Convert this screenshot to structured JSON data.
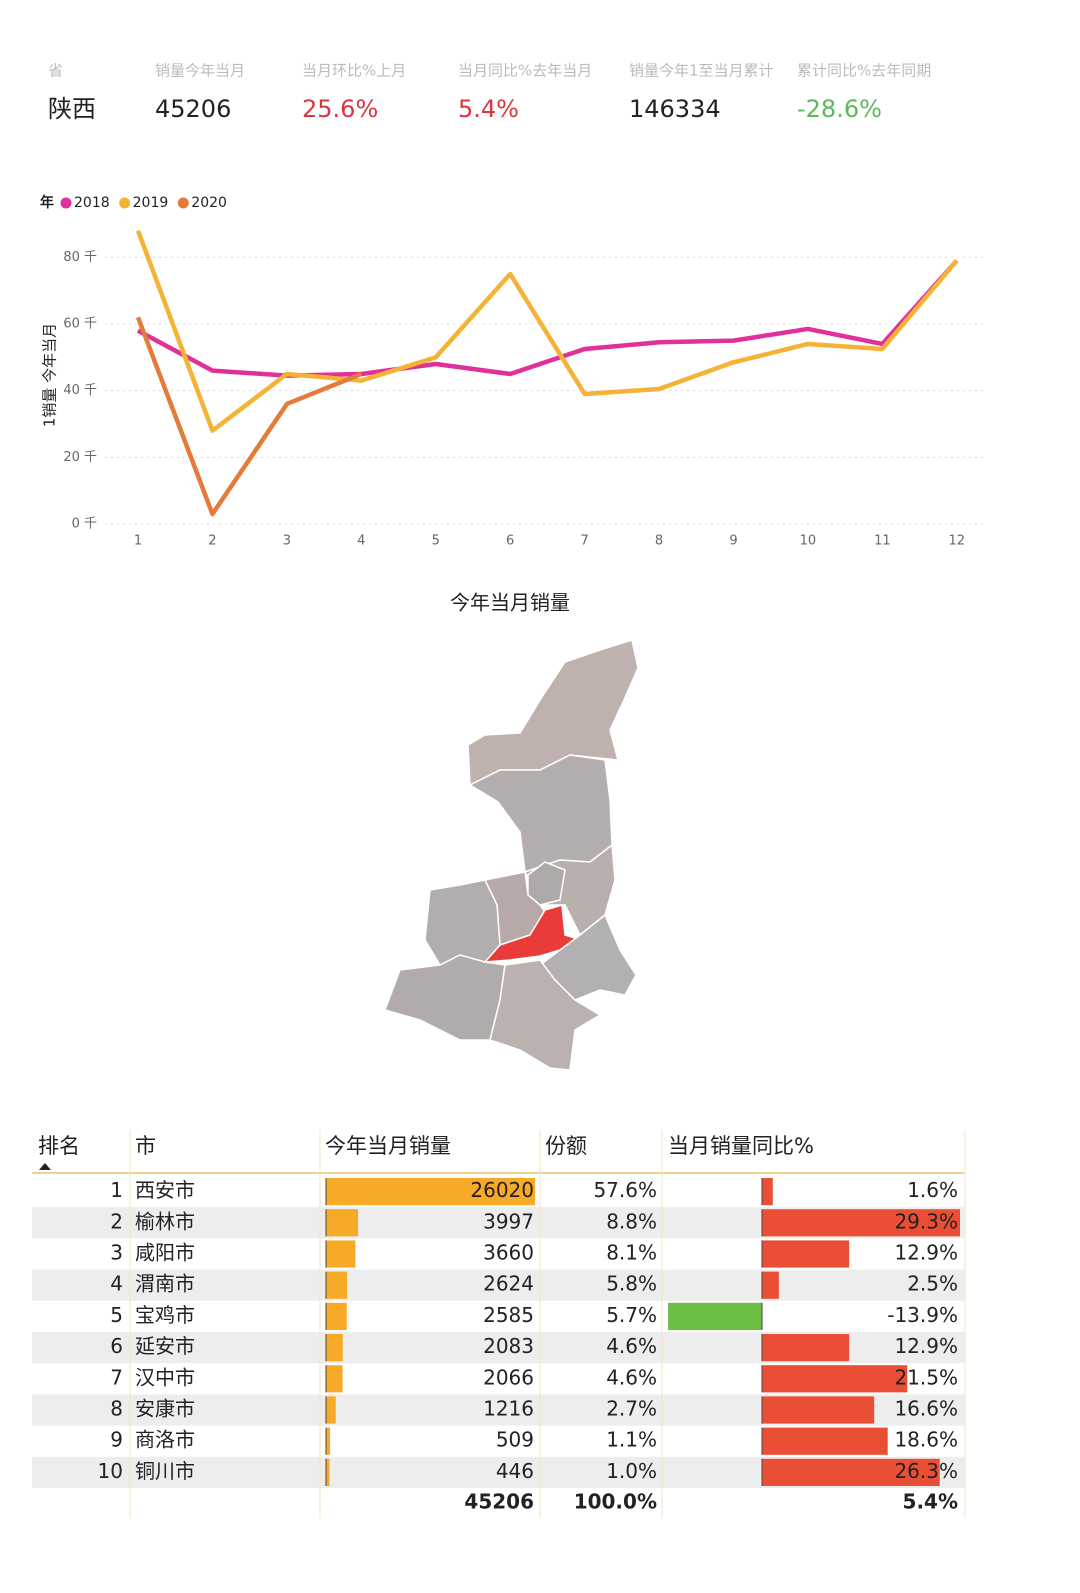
{
  "kpis": {
    "labels": [
      "省",
      "销量今年当月",
      "当月环比%上月",
      "当月同比%去年当月",
      "销量今年1至当月累计",
      "累计同比%去年同期"
    ],
    "values": [
      "陕西",
      "45206",
      "25.6%",
      "5.4%",
      "146334",
      "-28.6%"
    ],
    "colors": [
      "#222222",
      "#222222",
      "#d9363e",
      "#d9363e",
      "#222222",
      "#5cb85c"
    ]
  },
  "chart_data": {
    "type": "line",
    "legend_title": "年",
    "y_label": "1销量 今年当月",
    "categories": [
      "1",
      "2",
      "3",
      "4",
      "5",
      "6",
      "7",
      "8",
      "9",
      "10",
      "11",
      "12"
    ],
    "series": [
      {
        "name": "2018",
        "color": "#e0309a",
        "values": [
          58000,
          46000,
          44500,
          45000,
          48000,
          45000,
          52500,
          54500,
          55000,
          58500,
          54000,
          79000
        ]
      },
      {
        "name": "2019",
        "color": "#f5b335",
        "values": [
          88000,
          28000,
          45000,
          43000,
          50000,
          75000,
          39000,
          40500,
          48500,
          54000,
          52500,
          79000
        ]
      },
      {
        "name": "2020",
        "color": "#e57a3a",
        "values": [
          62000,
          3000,
          36000,
          45000,
          null,
          null,
          null,
          null,
          null,
          null,
          null,
          null
        ]
      }
    ],
    "ylim": [
      0,
      88000
    ],
    "yticks": [
      {
        "value": 0,
        "label": "0 千"
      },
      {
        "value": 20000,
        "label": "20 千"
      },
      {
        "value": 40000,
        "label": "40 千"
      },
      {
        "value": 60000,
        "label": "60 千"
      },
      {
        "value": 80000,
        "label": "80 千"
      }
    ],
    "grid": true
  },
  "map": {
    "title": "今年当月销量"
  },
  "table": {
    "columns": [
      "排名",
      "市",
      "今年当月销量",
      "份额",
      "当月销量同比%"
    ],
    "rows": [
      {
        "rank": 1,
        "city": "西安市",
        "sales": 26020,
        "share": "57.6%",
        "yoy": 1.6,
        "yoy_label": "1.6%"
      },
      {
        "rank": 2,
        "city": "榆林市",
        "sales": 3997,
        "share": "8.8%",
        "yoy": 29.3,
        "yoy_label": "29.3%"
      },
      {
        "rank": 3,
        "city": "咸阳市",
        "sales": 3660,
        "share": "8.1%",
        "yoy": 12.9,
        "yoy_label": "12.9%"
      },
      {
        "rank": 4,
        "city": "渭南市",
        "sales": 2624,
        "share": "5.8%",
        "yoy": 2.5,
        "yoy_label": "2.5%"
      },
      {
        "rank": 5,
        "city": "宝鸡市",
        "sales": 2585,
        "share": "5.7%",
        "yoy": -13.9,
        "yoy_label": "-13.9%"
      },
      {
        "rank": 6,
        "city": "延安市",
        "sales": 2083,
        "share": "4.6%",
        "yoy": 12.9,
        "yoy_label": "12.9%"
      },
      {
        "rank": 7,
        "city": "汉中市",
        "sales": 2066,
        "share": "4.6%",
        "yoy": 21.5,
        "yoy_label": "21.5%"
      },
      {
        "rank": 8,
        "city": "安康市",
        "sales": 1216,
        "share": "2.7%",
        "yoy": 16.6,
        "yoy_label": "16.6%"
      },
      {
        "rank": 9,
        "city": "商洛市",
        "sales": 509,
        "share": "1.1%",
        "yoy": 18.6,
        "yoy_label": "18.6%"
      },
      {
        "rank": 10,
        "city": "铜川市",
        "sales": 446,
        "share": "1.0%",
        "yoy": 26.3,
        "yoy_label": "26.3%"
      }
    ],
    "total": {
      "sales": "45206",
      "share": "100.0%",
      "yoy": "5.4%"
    }
  }
}
